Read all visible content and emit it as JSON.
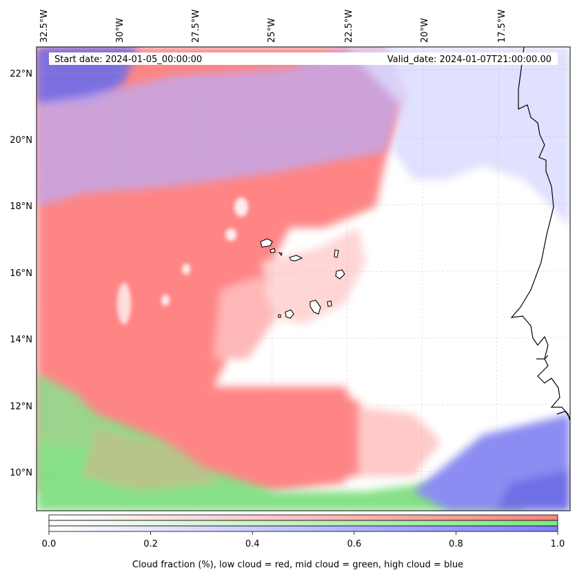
{
  "map": {
    "start_date": "Start date: 2024-01-05_00:00:00",
    "valid_date": "Valid_date: 2024-01-07T21:00:00.00",
    "lon_labels": [
      "32.5°W",
      "30°W",
      "27.5°W",
      "25°W",
      "22.5°W",
      "20°W",
      "17.5°W"
    ],
    "lat_labels": [
      "22°N",
      "20°N",
      "18°N",
      "16°N",
      "14°N",
      "12°N",
      "10°N"
    ],
    "colors": {
      "low_cloud": "#ff7f7f",
      "mid_cloud": "#7fe67f",
      "high_cloud": "#7f7fff",
      "coast": "#000000"
    }
  },
  "colorbar": {
    "tick_labels": [
      "0.0",
      "0.2",
      "0.4",
      "0.6",
      "0.8",
      "1.0"
    ],
    "title": "Cloud fraction (%), low cloud = red, mid cloud = green, high cloud = blue"
  }
}
